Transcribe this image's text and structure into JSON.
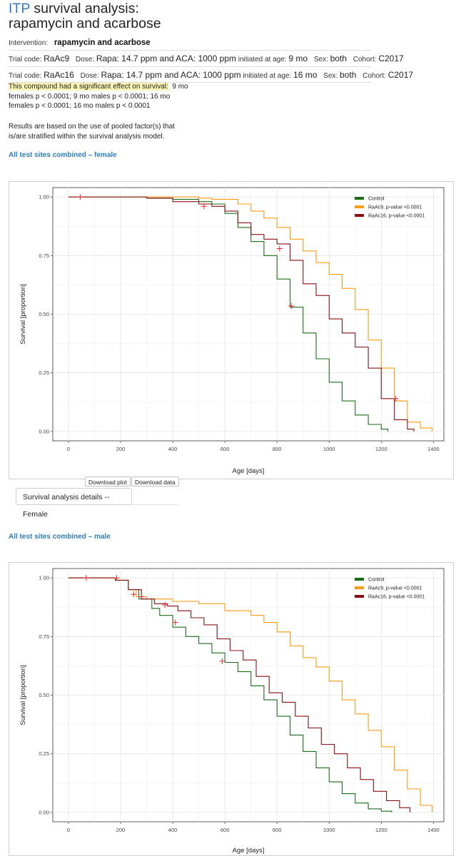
{
  "header": {
    "brand": "ITP",
    "title_rest": "survival analysis:",
    "title_line2": "rapamycin and acarbose"
  },
  "intervention": {
    "label": "Intervention:",
    "value": "rapamycin and acarbose"
  },
  "trials": [
    {
      "code_label": "Trial code:",
      "code": "RaAc9",
      "dose_label": "Dose:",
      "dose": "Rapa: 14.7 ppm and ACA: 1000 ppm",
      "age_label": "initiated at age:",
      "age": "9 mo",
      "sex_label": "Sex:",
      "sex": "both",
      "cohort_label": "Cohort:",
      "cohort": "C2017"
    },
    {
      "code_label": "Trial code:",
      "code": "RaAc16",
      "dose_label": "Dose:",
      "dose": "Rapa: 14.7 ppm and ACA: 1000 ppm",
      "age_label": "initiated at age:",
      "age": "16 mo",
      "sex_label": "Sex:",
      "sex": "both",
      "cohort_label": "Cohort:",
      "cohort": "C2017"
    }
  ],
  "effect": {
    "highlight": "This compound had a significant effect on survival:",
    "first": "9 mo",
    "rest": "females p < 0.0001; 9 mo males p < 0.0001; 16 mo females p < 0.0001; 16 mo males p < 0.0001"
  },
  "note": "Results are based on the use of pooled factor(s) that is/are stratified within the survival analysis model.",
  "sections": {
    "female": "All test sites combined – female",
    "male": "All test sites combined – male"
  },
  "buttons": {
    "download_plot": "Download plot",
    "download_data": "Download data",
    "details_female": "Survival analysis details -- Female"
  },
  "colors": {
    "brand": "#2f7dbf",
    "control": "#1a6e1a",
    "raac9": "#ff9912",
    "raac16": "#8b0f12",
    "censor": "#e8242a",
    "highlight": "#fbf4b4"
  },
  "chart_data": [
    {
      "type": "line",
      "subtype": "kaplan-meier-step",
      "xlabel": "Age [days]",
      "ylabel": "Survival [proportion]",
      "xlim": [
        -60,
        1440
      ],
      "ylim": [
        -0.04,
        1.04
      ],
      "x_ticks": [
        "0",
        "200",
        "400",
        "600",
        "800",
        "1000",
        "1200",
        "1400"
      ],
      "y_ticks": [
        "0.00",
        "0.25",
        "0.50",
        "0.75",
        "1.00"
      ],
      "grid": true,
      "legend_position": "top-right",
      "series": [
        {
          "name": "Control",
          "color": "#1a6e1a",
          "x": [
            0,
            150,
            300,
            400,
            500,
            550,
            600,
            650,
            700,
            750,
            800,
            850,
            900,
            950,
            1000,
            1050,
            1100,
            1150,
            1200,
            1225
          ],
          "y": [
            1.0,
            1.0,
            0.995,
            0.99,
            0.98,
            0.97,
            0.93,
            0.87,
            0.81,
            0.75,
            0.65,
            0.53,
            0.42,
            0.31,
            0.21,
            0.13,
            0.07,
            0.03,
            0.01,
            0.0
          ]
        },
        {
          "name": "RaAc9, p-value <0.0001",
          "color": "#ff9912",
          "x": [
            0,
            300,
            500,
            550,
            600,
            650,
            700,
            750,
            800,
            850,
            900,
            950,
            1000,
            1050,
            1100,
            1150,
            1200,
            1250,
            1300,
            1350,
            1395
          ],
          "y": [
            1.0,
            1.0,
            0.995,
            0.99,
            0.99,
            0.97,
            0.94,
            0.91,
            0.87,
            0.82,
            0.77,
            0.72,
            0.67,
            0.61,
            0.52,
            0.39,
            0.27,
            0.13,
            0.04,
            0.015,
            0.0
          ]
        },
        {
          "name": "RaAc16, p-value <0.0001",
          "color": "#8b0f12",
          "x": [
            0,
            150,
            300,
            400,
            500,
            550,
            600,
            650,
            700,
            750,
            800,
            850,
            900,
            950,
            1000,
            1050,
            1100,
            1150,
            1200,
            1250,
            1300,
            1325
          ],
          "y": [
            1.0,
            1.0,
            0.995,
            0.98,
            0.97,
            0.96,
            0.94,
            0.89,
            0.84,
            0.82,
            0.8,
            0.73,
            0.63,
            0.58,
            0.48,
            0.42,
            0.36,
            0.27,
            0.14,
            0.05,
            0.01,
            0.0
          ]
        }
      ],
      "censor_marks": [
        {
          "x": 45,
          "y": 1.0,
          "series": "Control"
        },
        {
          "x": 520,
          "y": 0.96,
          "series": "Control"
        },
        {
          "x": 855,
          "y": 0.535,
          "series": "Control"
        },
        {
          "x": 810,
          "y": 0.78,
          "series": "RaAc16, p-value <0.0001"
        },
        {
          "x": 1255,
          "y": 0.14,
          "series": "RaAc9, p-value <0.0001"
        }
      ]
    },
    {
      "type": "line",
      "subtype": "kaplan-meier-step",
      "xlabel": "Age [days]",
      "ylabel": "Survival [proportion]",
      "xlim": [
        -60,
        1440
      ],
      "ylim": [
        -0.04,
        1.04
      ],
      "x_ticks": [
        "0",
        "200",
        "400",
        "600",
        "800",
        "1000",
        "1200",
        "1400"
      ],
      "y_ticks": [
        "0.00",
        "0.25",
        "0.50",
        "0.75",
        "1.00"
      ],
      "grid": true,
      "legend_position": "top-right",
      "series": [
        {
          "name": "Control",
          "color": "#1a6e1a",
          "x": [
            0,
            180,
            230,
            270,
            320,
            350,
            400,
            450,
            500,
            550,
            600,
            650,
            700,
            750,
            800,
            850,
            900,
            950,
            1000,
            1050,
            1100,
            1150,
            1200,
            1240
          ],
          "y": [
            1.0,
            0.99,
            0.95,
            0.91,
            0.87,
            0.84,
            0.79,
            0.75,
            0.72,
            0.68,
            0.64,
            0.6,
            0.54,
            0.48,
            0.41,
            0.33,
            0.26,
            0.19,
            0.13,
            0.08,
            0.04,
            0.015,
            0.005,
            0.0
          ]
        },
        {
          "name": "RaAc9, p-value <0.0001",
          "color": "#ff9912",
          "x": [
            0,
            180,
            230,
            260,
            300,
            350,
            400,
            500,
            600,
            700,
            750,
            800,
            850,
            900,
            950,
            1000,
            1050,
            1100,
            1150,
            1200,
            1250,
            1300,
            1350,
            1395
          ],
          "y": [
            1.0,
            0.99,
            0.95,
            0.92,
            0.91,
            0.91,
            0.9,
            0.89,
            0.86,
            0.84,
            0.81,
            0.77,
            0.71,
            0.66,
            0.62,
            0.56,
            0.48,
            0.42,
            0.35,
            0.28,
            0.18,
            0.1,
            0.03,
            0.0
          ]
        },
        {
          "name": "RaAc16, p-value <0.0001",
          "color": "#8b0f12",
          "x": [
            0,
            180,
            230,
            280,
            330,
            380,
            420,
            470,
            520,
            570,
            620,
            670,
            720,
            770,
            820,
            870,
            920,
            970,
            1020,
            1070,
            1120,
            1170,
            1220,
            1270,
            1310
          ],
          "y": [
            1.0,
            0.99,
            0.95,
            0.91,
            0.89,
            0.88,
            0.86,
            0.83,
            0.8,
            0.74,
            0.69,
            0.65,
            0.58,
            0.51,
            0.47,
            0.41,
            0.36,
            0.29,
            0.25,
            0.19,
            0.14,
            0.09,
            0.05,
            0.02,
            0.0
          ]
        }
      ],
      "censor_marks": [
        {
          "x": 68,
          "y": 1.0,
          "series": "Control"
        },
        {
          "x": 185,
          "y": 1.0,
          "series": "Control"
        },
        {
          "x": 250,
          "y": 0.93,
          "series": "RaAc16, p-value <0.0001"
        },
        {
          "x": 280,
          "y": 0.92,
          "series": "RaAc16, p-value <0.0001"
        },
        {
          "x": 370,
          "y": 0.885,
          "series": "RaAc16, p-value <0.0001"
        },
        {
          "x": 410,
          "y": 0.81,
          "series": "Control"
        },
        {
          "x": 590,
          "y": 0.645,
          "series": "Control"
        }
      ]
    }
  ]
}
